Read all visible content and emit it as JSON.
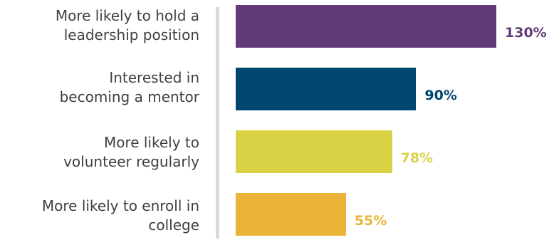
{
  "chart_data": {
    "type": "bar",
    "orientation": "horizontal",
    "categories": [
      "More likely to hold a\nleadership position",
      "Interested in\nbecoming a mentor",
      "More likely to\nvolunteer regularly",
      "More likely to enroll in\ncollege"
    ],
    "values": [
      130,
      90,
      78,
      55
    ],
    "value_labels": [
      "130%",
      "90%",
      "78%",
      "55%"
    ],
    "colors": [
      "#623a77",
      "#00466e",
      "#d9d247",
      "#e9b437"
    ],
    "xlim": [
      0,
      160
    ],
    "grid": false,
    "legend": "none"
  }
}
